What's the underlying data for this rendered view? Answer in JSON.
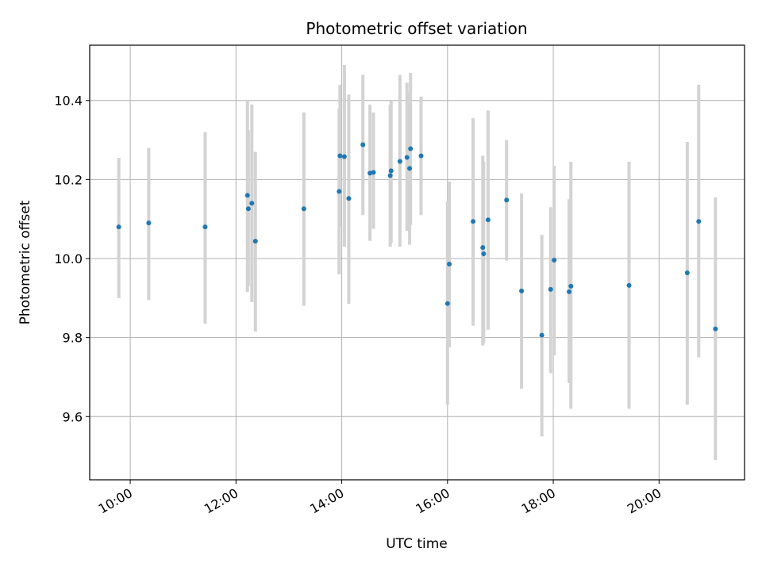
{
  "chart_data": {
    "type": "scatter",
    "title": "Photometric offset variation",
    "xlabel": "UTC time",
    "ylabel": "Photometric offset",
    "x_axis_kind": "time",
    "x_ticks": [
      "10:00",
      "12:00",
      "14:00",
      "16:00",
      "18:00",
      "20:00"
    ],
    "y_ticks": [
      "9.6",
      "9.8",
      "10.0",
      "10.2",
      "10.4"
    ],
    "xlim": [
      "09:14",
      "21:37"
    ],
    "ylim": [
      9.44,
      10.54
    ],
    "grid": true,
    "colors": {
      "point": "#1f77b4",
      "errorbar": "#d3d3d3",
      "grid": "#b0b0b0"
    },
    "points": [
      {
        "x": "09:47",
        "y": 10.08,
        "ylow": 9.9,
        "yhigh": 10.255
      },
      {
        "x": "10:21",
        "y": 10.09,
        "ylow": 9.895,
        "yhigh": 10.28
      },
      {
        "x": "11:25",
        "y": 10.08,
        "ylow": 9.835,
        "yhigh": 10.32
      },
      {
        "x": "12:13",
        "y": 10.16,
        "ylow": 9.915,
        "yhigh": 10.4
      },
      {
        "x": "12:14",
        "y": 10.126,
        "ylow": 9.93,
        "yhigh": 10.325
      },
      {
        "x": "12:18",
        "y": 10.14,
        "ylow": 9.89,
        "yhigh": 10.39
      },
      {
        "x": "12:22",
        "y": 10.044,
        "ylow": 9.815,
        "yhigh": 10.27
      },
      {
        "x": "13:17",
        "y": 10.126,
        "ylow": 9.88,
        "yhigh": 10.37
      },
      {
        "x": "13:57",
        "y": 10.17,
        "ylow": 9.96,
        "yhigh": 10.38
      },
      {
        "x": "13:58",
        "y": 10.26,
        "ylow": 10.08,
        "yhigh": 10.44
      },
      {
        "x": "14:03",
        "y": 10.258,
        "ylow": 10.03,
        "yhigh": 10.49
      },
      {
        "x": "14:08",
        "y": 10.152,
        "ylow": 9.885,
        "yhigh": 10.415
      },
      {
        "x": "14:24",
        "y": 10.288,
        "ylow": 10.11,
        "yhigh": 10.465
      },
      {
        "x": "14:32",
        "y": 10.216,
        "ylow": 10.045,
        "yhigh": 10.39
      },
      {
        "x": "14:36",
        "y": 10.218,
        "ylow": 10.075,
        "yhigh": 10.37
      },
      {
        "x": "14:55",
        "y": 10.21,
        "ylow": 10.03,
        "yhigh": 10.39
      },
      {
        "x": "14:56",
        "y": 10.222,
        "ylow": 10.04,
        "yhigh": 10.4
      },
      {
        "x": "15:06",
        "y": 10.246,
        "ylow": 10.03,
        "yhigh": 10.465
      },
      {
        "x": "15:14",
        "y": 10.256,
        "ylow": 10.07,
        "yhigh": 10.445
      },
      {
        "x": "15:17",
        "y": 10.228,
        "ylow": 10.035,
        "yhigh": 10.42
      },
      {
        "x": "15:18",
        "y": 10.278,
        "ylow": 10.085,
        "yhigh": 10.47
      },
      {
        "x": "15:30",
        "y": 10.26,
        "ylow": 10.11,
        "yhigh": 10.41
      },
      {
        "x": "16:00",
        "y": 9.886,
        "ylow": 9.63,
        "yhigh": 10.145
      },
      {
        "x": "16:02",
        "y": 9.986,
        "ylow": 9.775,
        "yhigh": 10.195
      },
      {
        "x": "16:29",
        "y": 10.094,
        "ylow": 9.83,
        "yhigh": 10.355
      },
      {
        "x": "16:40",
        "y": 10.028,
        "ylow": 9.78,
        "yhigh": 10.26
      },
      {
        "x": "16:41",
        "y": 10.012,
        "ylow": 9.785,
        "yhigh": 10.245
      },
      {
        "x": "16:46",
        "y": 10.098,
        "ylow": 9.82,
        "yhigh": 10.375
      },
      {
        "x": "17:07",
        "y": 10.148,
        "ylow": 9.995,
        "yhigh": 10.3
      },
      {
        "x": "17:24",
        "y": 9.918,
        "ylow": 9.67,
        "yhigh": 10.165
      },
      {
        "x": "17:47",
        "y": 9.806,
        "ylow": 9.55,
        "yhigh": 10.06
      },
      {
        "x": "17:57",
        "y": 9.922,
        "ylow": 9.71,
        "yhigh": 10.13
      },
      {
        "x": "18:01",
        "y": 9.996,
        "ylow": 9.755,
        "yhigh": 10.235
      },
      {
        "x": "18:18",
        "y": 9.916,
        "ylow": 9.685,
        "yhigh": 10.15
      },
      {
        "x": "18:20",
        "y": 9.93,
        "ylow": 9.62,
        "yhigh": 10.245
      },
      {
        "x": "19:26",
        "y": 9.932,
        "ylow": 9.62,
        "yhigh": 10.245
      },
      {
        "x": "20:32",
        "y": 9.964,
        "ylow": 9.63,
        "yhigh": 10.295
      },
      {
        "x": "20:45",
        "y": 10.094,
        "ylow": 9.75,
        "yhigh": 10.44
      },
      {
        "x": "21:04",
        "y": 9.822,
        "ylow": 9.49,
        "yhigh": 10.155
      }
    ]
  }
}
